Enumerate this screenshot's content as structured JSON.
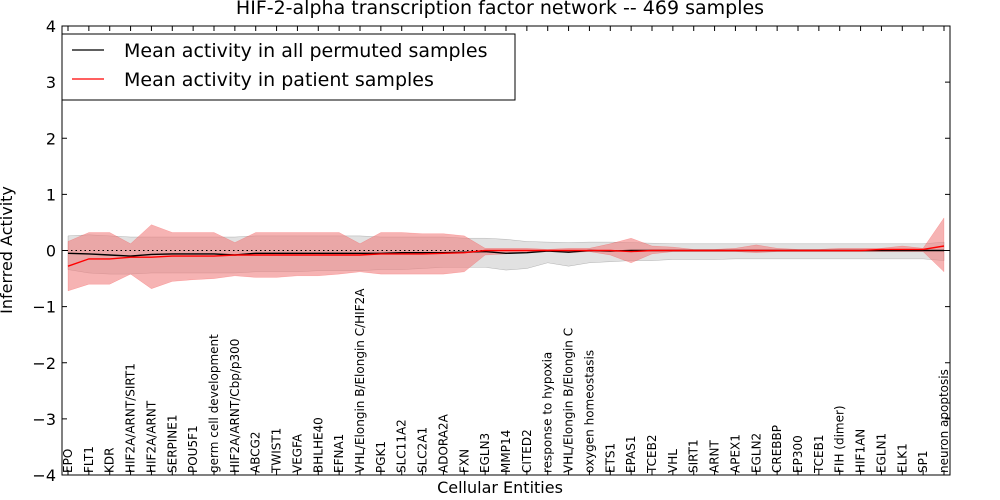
{
  "chart_data": {
    "type": "line",
    "title": "HIF-2-alpha transcription factor network -- 469 samples",
    "xlabel": "Cellular Entities",
    "ylabel": "Inferred Activity",
    "ylim": [
      -4,
      4
    ],
    "yticks": [
      4,
      3,
      2,
      1,
      0,
      -1,
      -2,
      -3,
      -4
    ],
    "ytick_labels": [
      "4",
      "3",
      "2",
      "1",
      "0",
      "−1",
      "−2",
      "−3",
      "−4"
    ],
    "reference_line": 0,
    "legend_position": "top-left",
    "categories": [
      "EPO",
      "FLT1",
      "KDR",
      "HIF2A/ARNT/SIRT1",
      "HIF2A/ARNT",
      "SERPINE1",
      "POU5F1",
      "germ cell development",
      "HIF2A/ARNT/Cbp/p300",
      "ABCG2",
      "TWIST1",
      "VEGFA",
      "BHLHE40",
      "EFNA1",
      "VHL/Elongin B/Elongin C/HIF2A",
      "PGK1",
      "SLC11A2",
      "SLC2A1",
      "ADORA2A",
      "FXN",
      "EGLN3",
      "MMP14",
      "CITED2",
      "response to hypoxia",
      "VHL/Elongin B/Elongin C",
      "oxygen homeostasis",
      "ETS1",
      "EPAS1",
      "TCEB2",
      "VHL",
      "SIRT1",
      "ARNT",
      "APEX1",
      "EGLN2",
      "CREBBP",
      "EP300",
      "TCEB1",
      "FIH (dimer)",
      "HIF1AN",
      "EGLN1",
      "ELK1",
      "SP1",
      "neuron apoptosis"
    ],
    "series": [
      {
        "name": "Mean activity in all permuted samples",
        "color": "#000000",
        "band_color": "#c8c8c8",
        "values": [
          -0.05,
          -0.06,
          -0.08,
          -0.1,
          -0.07,
          -0.06,
          -0.06,
          -0.06,
          -0.08,
          -0.05,
          -0.05,
          -0.05,
          -0.05,
          -0.05,
          -0.05,
          -0.05,
          -0.04,
          -0.04,
          -0.04,
          -0.03,
          -0.02,
          -0.05,
          -0.04,
          -0.01,
          -0.03,
          0.0,
          -0.01,
          0.0,
          0.0,
          0.0,
          0.0,
          0.0,
          0.0,
          0.0,
          0.0,
          0.0,
          0.0,
          0.0,
          0.0,
          0.0,
          0.0,
          0.0,
          0.0
        ],
        "lower": [
          -0.34,
          -0.4,
          -0.42,
          -0.42,
          -0.4,
          -0.4,
          -0.4,
          -0.4,
          -0.4,
          -0.38,
          -0.38,
          -0.38,
          -0.36,
          -0.36,
          -0.36,
          -0.34,
          -0.34,
          -0.32,
          -0.3,
          -0.3,
          -0.3,
          -0.35,
          -0.32,
          -0.22,
          -0.28,
          -0.22,
          -0.2,
          -0.18,
          -0.18,
          -0.16,
          -0.16,
          -0.16,
          -0.15,
          -0.15,
          -0.15,
          -0.15,
          -0.15,
          -0.15,
          -0.15,
          -0.15,
          -0.15,
          -0.15,
          -0.18
        ],
        "upper": [
          0.26,
          0.28,
          0.26,
          0.24,
          0.24,
          0.24,
          0.24,
          0.24,
          0.24,
          0.26,
          0.26,
          0.26,
          0.26,
          0.26,
          0.26,
          0.24,
          0.24,
          0.24,
          0.24,
          0.22,
          0.22,
          0.2,
          0.16,
          0.15,
          0.14,
          0.15,
          0.15,
          0.14,
          0.13,
          0.12,
          0.12,
          0.12,
          0.12,
          0.12,
          0.12,
          0.12,
          0.12,
          0.12,
          0.12,
          0.12,
          0.12,
          0.12,
          0.15
        ]
      },
      {
        "name": "Mean activity in patient samples",
        "color": "#ff0000",
        "band_color": "#f08080",
        "values": [
          -0.28,
          -0.15,
          -0.15,
          -0.12,
          -0.12,
          -0.1,
          -0.1,
          -0.1,
          -0.08,
          -0.08,
          -0.08,
          -0.08,
          -0.08,
          -0.08,
          -0.08,
          -0.06,
          -0.06,
          -0.06,
          -0.05,
          -0.04,
          0.0,
          0.0,
          0.0,
          0.0,
          0.0,
          0.0,
          0.0,
          -0.02,
          0.0,
          0.0,
          0.0,
          0.0,
          0.0,
          0.0,
          0.0,
          0.0,
          0.0,
          0.0,
          0.0,
          0.02,
          0.02,
          0.02,
          0.08
        ],
        "lower": [
          -0.72,
          -0.6,
          -0.6,
          -0.42,
          -0.68,
          -0.55,
          -0.52,
          -0.5,
          -0.45,
          -0.48,
          -0.48,
          -0.45,
          -0.45,
          -0.42,
          -0.38,
          -0.42,
          -0.42,
          -0.42,
          -0.42,
          -0.38,
          -0.08,
          -0.06,
          -0.04,
          0.0,
          -0.04,
          -0.02,
          -0.08,
          -0.22,
          -0.06,
          -0.02,
          -0.02,
          -0.02,
          -0.02,
          -0.04,
          -0.02,
          -0.02,
          -0.02,
          -0.02,
          -0.02,
          -0.02,
          -0.02,
          -0.02,
          -0.38
        ],
        "upper": [
          0.16,
          0.32,
          0.32,
          0.12,
          0.46,
          0.32,
          0.32,
          0.32,
          0.14,
          0.32,
          0.32,
          0.32,
          0.32,
          0.32,
          0.12,
          0.32,
          0.32,
          0.3,
          0.3,
          0.26,
          0.04,
          0.04,
          0.04,
          0.02,
          0.04,
          0.04,
          0.12,
          0.22,
          0.08,
          0.06,
          0.02,
          0.02,
          0.04,
          0.1,
          0.04,
          0.02,
          0.02,
          0.04,
          0.04,
          0.04,
          0.08,
          0.04,
          0.58
        ]
      }
    ]
  }
}
